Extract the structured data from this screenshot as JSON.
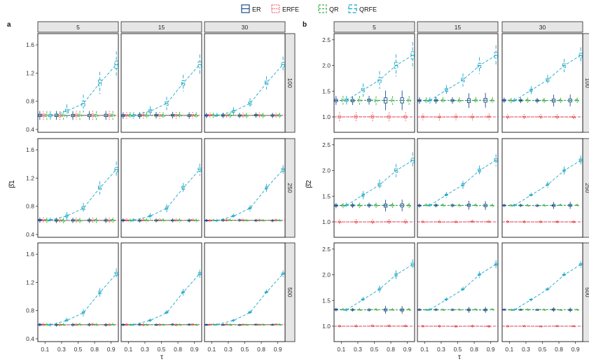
{
  "legend": {
    "items": [
      {
        "label": "ER",
        "color": "#1f4e8c",
        "dash": "solid"
      },
      {
        "label": "ERFE",
        "color": "#e8333a",
        "dash": "dotted"
      },
      {
        "label": "QR",
        "color": "#3fae49",
        "dash": "dashed"
      },
      {
        "label": "QRFE",
        "color": "#1fa8c9",
        "dash": "longdash"
      }
    ]
  },
  "chart_data": [
    {
      "type": "boxplot",
      "panel_label": "a",
      "ylabel": "β̂1",
      "xlabel": "τ",
      "col_strips": [
        "5",
        "15",
        "30"
      ],
      "row_strips": [
        "100",
        "250",
        "500"
      ],
      "x_ticks": [
        "0.1",
        "0.3",
        "0.5",
        "0.8",
        "0.9"
      ],
      "x": [
        0.1,
        0.3,
        0.5,
        0.8,
        0.9
      ],
      "ylim": [
        0.36,
        1.76
      ],
      "y_ticks": [
        0.4,
        0.8,
        1.2,
        1.6
      ],
      "reference_lines": [
        0.6
      ],
      "series_medians": {
        "ER": [
          0.6,
          0.6,
          0.6,
          0.6,
          0.6
        ],
        "ERFE": [
          0.6,
          0.6,
          0.6,
          0.6,
          0.6
        ],
        "QR": [
          0.6,
          0.6,
          0.6,
          0.6,
          0.6
        ],
        "QRFE": [
          0.6,
          0.66,
          0.77,
          1.06,
          1.32
        ]
      }
    },
    {
      "type": "boxplot",
      "panel_label": "b",
      "ylabel": "β̂2",
      "xlabel": "τ",
      "col_strips": [
        "5",
        "15",
        "30"
      ],
      "row_strips": [
        "100",
        "250",
        "500"
      ],
      "x_ticks": [
        "0.1",
        "0.3",
        "0.5",
        "0.8",
        "0.9"
      ],
      "x": [
        0.1,
        0.3,
        0.5,
        0.8,
        0.9
      ],
      "ylim": [
        0.7,
        2.62
      ],
      "y_ticks": [
        1.0,
        1.5,
        2.0,
        2.5
      ],
      "reference_lines": [
        1.0
      ],
      "series_medians": {
        "ER": [
          1.32,
          1.32,
          1.32,
          1.32,
          1.32
        ],
        "ERFE": [
          1.0,
          1.0,
          1.0,
          1.0,
          1.0
        ],
        "QR": [
          1.32,
          1.32,
          1.32,
          1.32,
          1.32
        ],
        "QRFE": [
          1.32,
          1.52,
          1.72,
          2.0,
          2.2
        ]
      }
    }
  ]
}
